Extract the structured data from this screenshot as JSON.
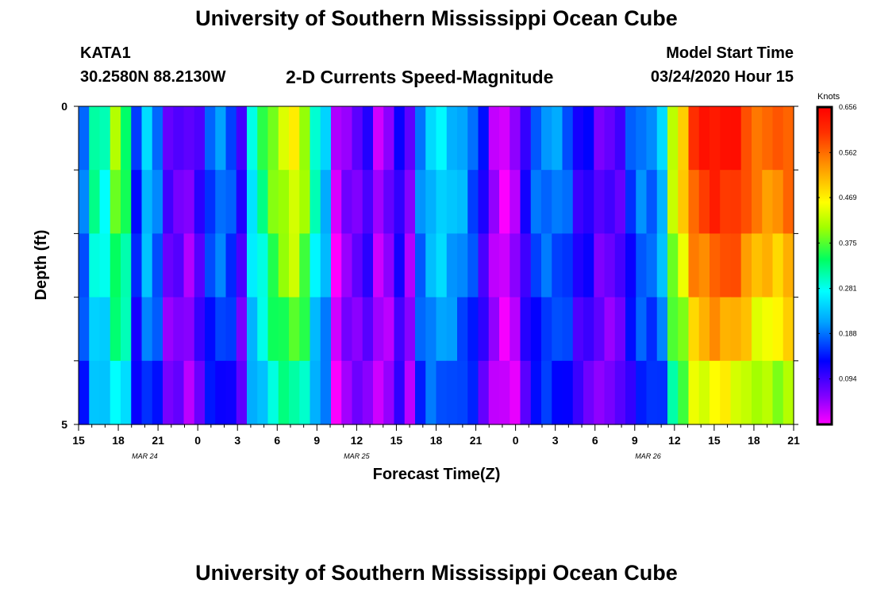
{
  "header": {
    "title": "University of Southern Mississippi Ocean Cube",
    "station_id": "KATA1",
    "station_coords": "30.2580N 88.2130W",
    "subtitle": "2-D Currents Speed-Magnitude",
    "model_start_label": "Model Start Time",
    "model_start_value": "03/24/2020 Hour 15"
  },
  "footer": {
    "title": "University of Southern Mississippi Ocean Cube"
  },
  "chart_data": {
    "type": "heatmap",
    "title": "2-D Currents Speed-Magnitude",
    "xlabel": "Forecast Time(Z)",
    "ylabel": "Depth (ft)",
    "ylim": [
      0,
      5
    ],
    "y_ticks": [
      "0",
      "5"
    ],
    "x_hours": [
      15,
      18,
      21,
      0,
      3,
      6,
      9,
      12,
      15,
      18,
      21,
      0,
      3,
      6,
      9,
      12,
      15,
      18,
      21
    ],
    "x_tick_labels": [
      "15",
      "18",
      "21",
      "0",
      "3",
      "6",
      "9",
      "12",
      "15",
      "18",
      "21",
      "0",
      "3",
      "6",
      "9",
      "12",
      "15",
      "18",
      "21"
    ],
    "date_labels": [
      {
        "text": "MAR 24",
        "hour_index": 5
      },
      {
        "text": "MAR 25",
        "hour_index": 21
      },
      {
        "text": "MAR 26",
        "hour_index": 43
      }
    ],
    "colorbar": {
      "unit": "Knots",
      "min": 0.0,
      "max": 0.656,
      "ticks": [
        "0.656",
        "0.562",
        "0.469",
        "0.375",
        "0.281",
        "0.188",
        "0.094"
      ],
      "tick_values": [
        0.656,
        0.562,
        0.469,
        0.375,
        0.281,
        0.188,
        0.094
      ]
    },
    "depth_layer_count": 5,
    "speed_profile_knots": [
      0.2,
      0.32,
      0.3,
      0.4,
      0.35,
      0.16,
      0.24,
      0.2,
      0.08,
      0.08,
      0.06,
      0.1,
      0.18,
      0.2,
      0.18,
      0.1,
      0.28,
      0.34,
      0.4,
      0.44,
      0.46,
      0.42,
      0.3,
      0.24,
      0.02,
      0.06,
      0.08,
      0.1,
      0.04,
      0.06,
      0.12,
      0.06,
      0.2,
      0.25,
      0.26,
      0.24,
      0.22,
      0.18,
      0.12,
      0.04,
      0.02,
      0.04,
      0.12,
      0.18,
      0.2,
      0.2,
      0.18,
      0.12,
      0.12,
      0.08,
      0.08,
      0.09,
      0.16,
      0.2,
      0.2,
      0.24,
      0.44,
      0.5,
      0.6,
      0.62,
      0.64,
      0.64,
      0.63,
      0.6,
      0.56,
      0.56,
      0.56,
      0.58
    ],
    "depth_factors": [
      1.0,
      0.96,
      0.9,
      0.82,
      0.72
    ]
  }
}
